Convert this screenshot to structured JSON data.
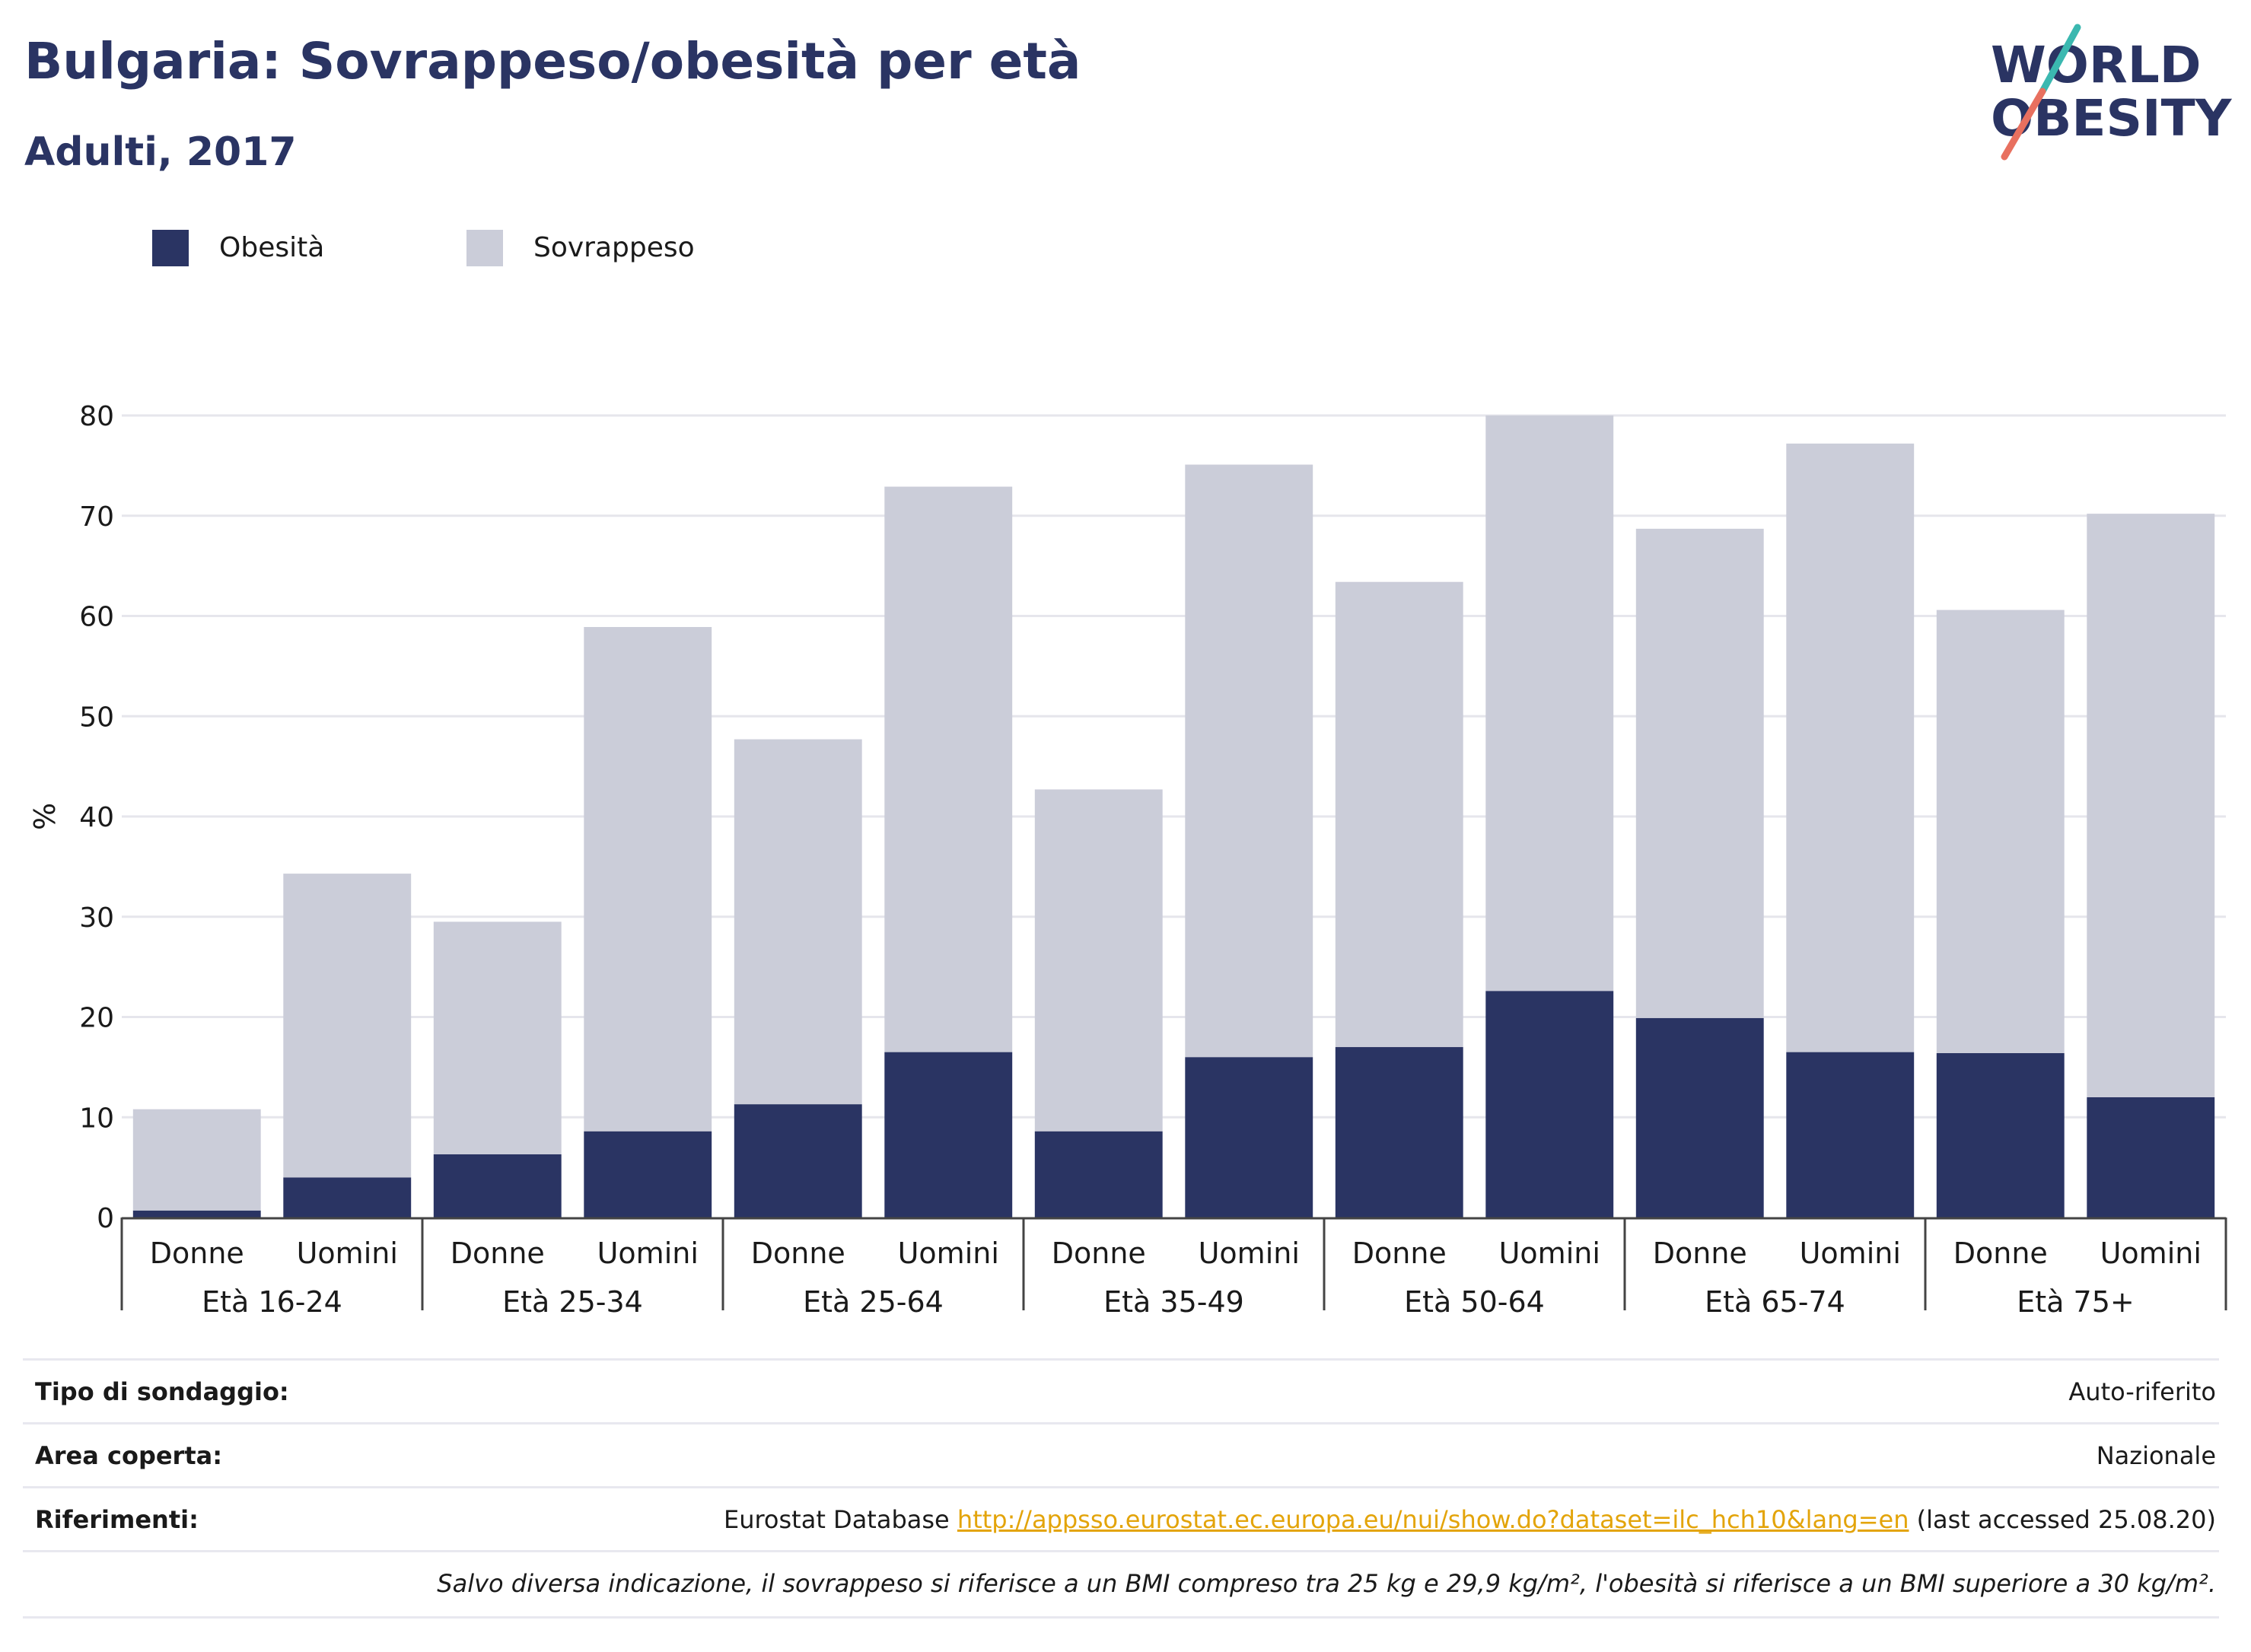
{
  "header": {
    "title": "Bulgaria: Sovrappeso/obesità per età",
    "subtitle": "Adulti, 2017"
  },
  "logo": {
    "line1": "WORLD",
    "line2": "OBESITY",
    "colors": {
      "text": "#2a3463",
      "accent_teal": "#3bb8b0",
      "accent_red": "#e8705f"
    }
  },
  "legend": [
    {
      "label": "Obesità",
      "color": "#2a3463"
    },
    {
      "label": "Sovrappeso",
      "color": "#cbcdd9"
    }
  ],
  "chart_data": {
    "type": "bar",
    "stacked": true,
    "ylabel": "%",
    "ylim": [
      0,
      80
    ],
    "yticks": [
      0,
      10,
      20,
      30,
      40,
      50,
      60,
      70,
      80
    ],
    "grid": true,
    "legend_position": "top-left",
    "groups": [
      "Età 16-24",
      "Età 25-34",
      "Età 25-64",
      "Età 35-49",
      "Età 50-64",
      "Età 65-74",
      "Età 75+"
    ],
    "sexes": [
      "Donne",
      "Uomini"
    ],
    "categories": [
      "Età 16-24 Donne",
      "Età 16-24 Uomini",
      "Età 25-34 Donne",
      "Età 25-34 Uomini",
      "Età 25-64 Donne",
      "Età 25-64 Uomini",
      "Età 35-49 Donne",
      "Età 35-49 Uomini",
      "Età 50-64 Donne",
      "Età 50-64 Uomini",
      "Età 65-74 Donne",
      "Età 65-74 Uomini",
      "Età 75+ Donne",
      "Età 75+ Uomini"
    ],
    "series": [
      {
        "name": "Obesità",
        "color": "#2a3463",
        "values": [
          0.7,
          4.0,
          6.3,
          8.6,
          11.3,
          16.5,
          8.6,
          16.0,
          17.0,
          22.6,
          19.9,
          16.5,
          16.4,
          12.0
        ]
      },
      {
        "name": "Sovrappeso",
        "color": "#cbcdd9",
        "values": [
          10.1,
          30.3,
          23.2,
          50.3,
          36.4,
          56.4,
          34.1,
          59.1,
          46.4,
          57.4,
          48.8,
          60.7,
          44.2,
          58.2
        ]
      }
    ]
  },
  "footer": {
    "rows": [
      {
        "key": "Tipo di sondaggio:",
        "value": "Auto-riferito"
      },
      {
        "key": "Area coperta:",
        "value": "Nazionale"
      },
      {
        "key": "Riferimenti:",
        "value_prefix": "Eurostat Database ",
        "link": "http://appsso.eurostat.ec.europa.eu/nui/show.do?dataset=ilc_hch10&lang=en",
        "value_suffix": " (last accessed 25.08.20)"
      }
    ],
    "note": "Salvo diversa indicazione, il sovrappeso si riferisce a un BMI compreso tra 25 kg e 29,9 kg/m², l'obesità si riferisce a un BMI superiore a 30 kg/m²."
  }
}
